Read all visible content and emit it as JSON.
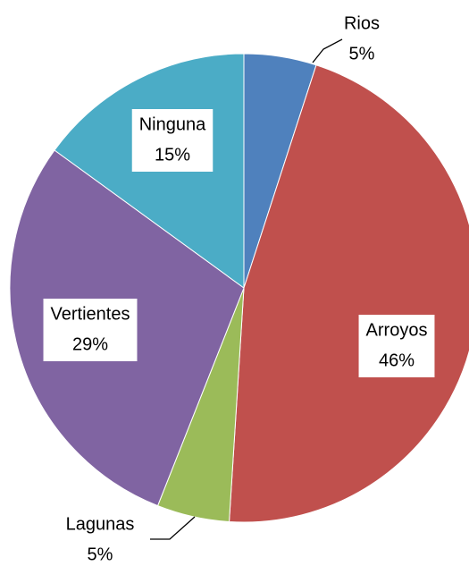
{
  "chart_data": {
    "type": "pie",
    "categories": [
      "Rios",
      "Arroyos",
      "Lagunas",
      "Vertientes",
      "Ninguna"
    ],
    "values": [
      5,
      46,
      5,
      29,
      15
    ],
    "value_labels": [
      "5%",
      "46%",
      "5%",
      "29%",
      "15%"
    ],
    "colors": [
      "#4f81bd",
      "#c0504d",
      "#9bbb59",
      "#8064a2",
      "#4bacc6"
    ]
  }
}
